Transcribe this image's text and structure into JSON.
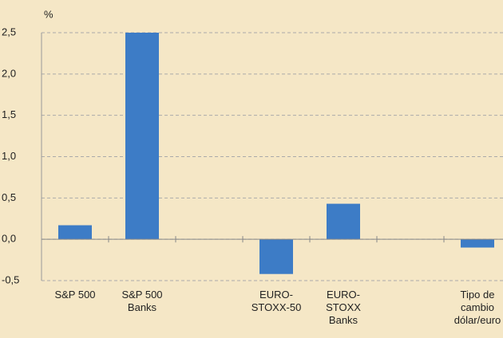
{
  "chart_data": {
    "type": "bar",
    "y_label": "%",
    "categories": [
      "S&P 500",
      "S&P 500 Banks",
      null,
      "EURO-STOXX-50",
      "EURO-STOXX Banks",
      null,
      "Tipo de cambio dólar/euro"
    ],
    "values": [
      0.17,
      2.5,
      null,
      -0.42,
      0.43,
      null,
      -0.1
    ],
    "color": "#3d7cc6",
    "ylim": [
      -0.5,
      2.5
    ],
    "yticks": [
      {
        "value": -0.5,
        "label": "-0,5"
      },
      {
        "value": 0,
        "label": "0,0"
      },
      {
        "value": 0.5,
        "label": "0,5"
      },
      {
        "value": 1,
        "label": "1,0"
      },
      {
        "value": 1.5,
        "label": "1,5"
      },
      {
        "value": 2,
        "label": "2,0"
      },
      {
        "value": 2.5,
        "label": "2,5"
      }
    ],
    "grid": true
  }
}
